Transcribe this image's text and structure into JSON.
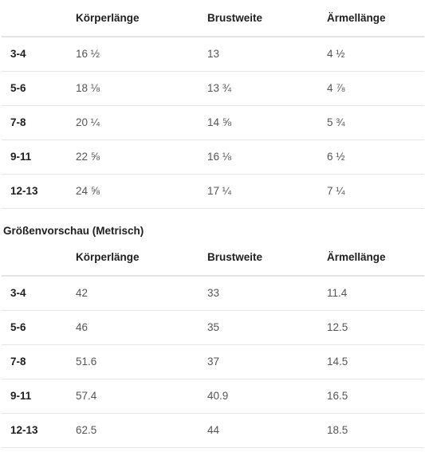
{
  "columns": {
    "length": "Körperlänge",
    "chest": "Brustweite",
    "sleeve": "Ärmellänge"
  },
  "imperial": {
    "rows": [
      {
        "size": "3-4",
        "length": "16 ½",
        "chest": "13",
        "sleeve": "4 ½"
      },
      {
        "size": "5-6",
        "length": "18 ⅛",
        "chest": "13 ¾",
        "sleeve": "4 ⅞"
      },
      {
        "size": "7-8",
        "length": "20 ¼",
        "chest": "14 ⅝",
        "sleeve": "5 ¾"
      },
      {
        "size": "9-11",
        "length": "22 ⅝",
        "chest": "16 ⅛",
        "sleeve": "6 ½"
      },
      {
        "size": "12-13",
        "length": "24 ⅝",
        "chest": "17 ¼",
        "sleeve": "7 ¼"
      }
    ]
  },
  "metric": {
    "heading": "Größenvorschau (Metrisch)",
    "rows": [
      {
        "size": "3-4",
        "length": "42",
        "chest": "33",
        "sleeve": "11.4"
      },
      {
        "size": "5-6",
        "length": "46",
        "chest": "35",
        "sleeve": "12.5"
      },
      {
        "size": "7-8",
        "length": "51.6",
        "chest": "37",
        "sleeve": "14.5"
      },
      {
        "size": "9-11",
        "length": "57.4",
        "chest": "40.9",
        "sleeve": "16.5"
      },
      {
        "size": "12-13",
        "length": "62.5",
        "chest": "44",
        "sleeve": "18.5"
      }
    ]
  }
}
